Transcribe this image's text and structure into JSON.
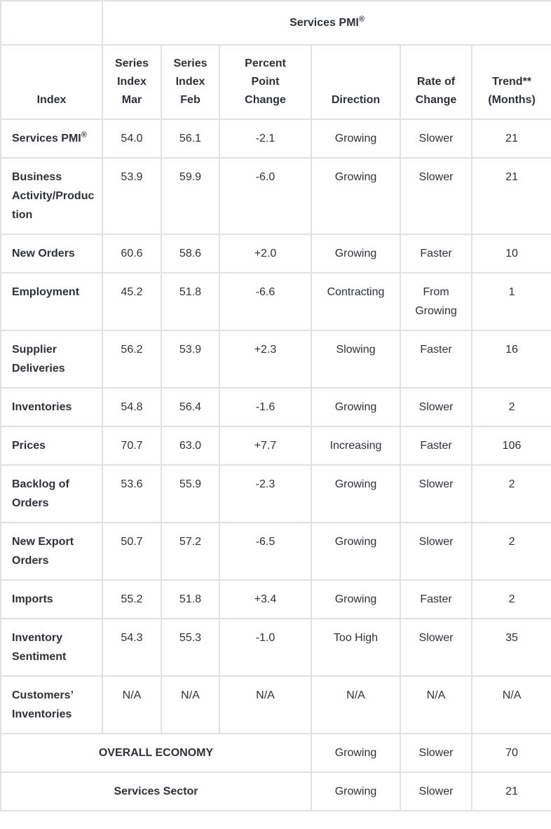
{
  "table": {
    "title_text": "Services PMI",
    "reg_symbol": "®",
    "columns": [
      {
        "key": "index",
        "lines": [
          "Index"
        ]
      },
      {
        "key": "series-index-mar",
        "lines": [
          "Series",
          "Index",
          "Mar"
        ]
      },
      {
        "key": "series-index-feb",
        "lines": [
          "Series",
          "Index",
          "Feb"
        ]
      },
      {
        "key": "percent-point-change",
        "lines": [
          "Percent",
          "Point",
          "Change"
        ]
      },
      {
        "key": "direction",
        "lines": [
          "Direction"
        ]
      },
      {
        "key": "rate-of-change",
        "lines": [
          "Rate of",
          "Change"
        ]
      },
      {
        "key": "trend-months",
        "lines": [
          "Trend**",
          "(Months)"
        ]
      }
    ],
    "rows": [
      {
        "label": "Services PMI",
        "sup": "®",
        "values": [
          "54.0",
          "56.1",
          "-2.1",
          "Growing",
          "Slower",
          "21"
        ]
      },
      {
        "label": "Business Activity/Production",
        "values": [
          "53.9",
          "59.9",
          "-6.0",
          "Growing",
          "Slower",
          "21"
        ]
      },
      {
        "label": "New Orders",
        "values": [
          "60.6",
          "58.6",
          "+2.0",
          "Growing",
          "Faster",
          "10"
        ]
      },
      {
        "label": "Employment",
        "values": [
          "45.2",
          "51.8",
          "-6.6",
          "Contracting",
          "From Growing",
          "1"
        ]
      },
      {
        "label": "Supplier Deliveries",
        "values": [
          "56.2",
          "53.9",
          "+2.3",
          "Slowing",
          "Faster",
          "16"
        ]
      },
      {
        "label": "Inventories",
        "values": [
          "54.8",
          "56.4",
          "-1.6",
          "Growing",
          "Slower",
          "2"
        ]
      },
      {
        "label": "Prices",
        "values": [
          "70.7",
          "63.0",
          "+7.7",
          "Increasing",
          "Faster",
          "106"
        ]
      },
      {
        "label": "Backlog of Orders",
        "values": [
          "53.6",
          "55.9",
          "-2.3",
          "Growing",
          "Slower",
          "2"
        ]
      },
      {
        "label": "New Export Orders",
        "values": [
          "50.7",
          "57.2",
          "-6.5",
          "Growing",
          "Slower",
          "2"
        ]
      },
      {
        "label": "Imports",
        "values": [
          "55.2",
          "51.8",
          "+3.4",
          "Growing",
          "Faster",
          "2"
        ]
      },
      {
        "label": "Inventory Sentiment",
        "values": [
          "54.3",
          "55.3",
          "-1.0",
          "Too High",
          "Slower",
          "35"
        ]
      },
      {
        "label": "Customers’ Inventories",
        "values": [
          "N/A",
          "N/A",
          "N/A",
          "N/A",
          "N/A",
          "N/A"
        ]
      }
    ],
    "summary_rows": [
      {
        "key": "overall-economy",
        "label": "OVERALL ECONOMY",
        "values": [
          "Growing",
          "Slower",
          "70"
        ]
      },
      {
        "key": "services-sector",
        "label": "Services Sector",
        "values": [
          "Growing",
          "Slower",
          "21"
        ]
      }
    ],
    "colors": {
      "border": "#dee1e6",
      "text": "#2e3238",
      "background": "#ffffff"
    }
  }
}
